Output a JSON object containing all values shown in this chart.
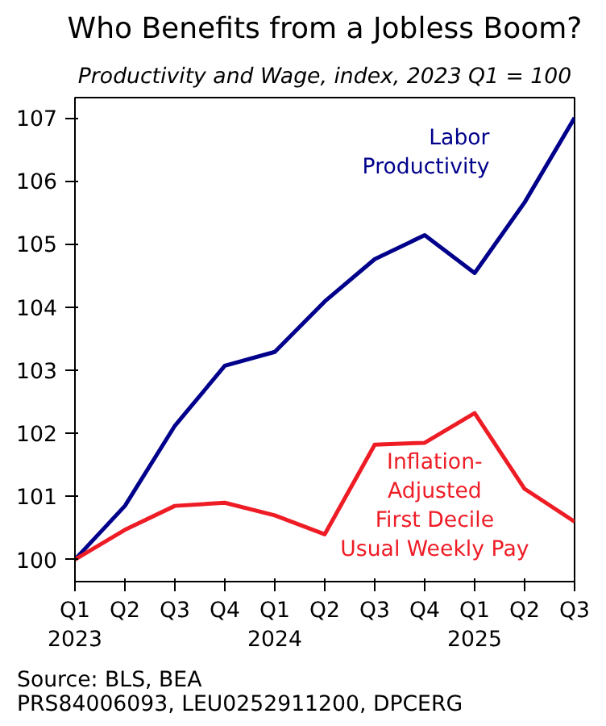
{
  "chart_data": {
    "type": "line",
    "title": "Who Benefits from a Jobless Boom?",
    "subtitle": "Productivity and Wage, index, 2023 Q1 = 100",
    "categories": [
      "Q1\n2023",
      "Q2",
      "Q3",
      "Q4",
      "Q1\n2024",
      "Q2",
      "Q3",
      "Q4",
      "Q1\n2025",
      "Q2",
      "Q3"
    ],
    "series": [
      {
        "name": "Labor\nProductivity",
        "color": "#00008b",
        "values": [
          100,
          100.85,
          102.12,
          103.07,
          103.29,
          104.09,
          104.76,
          105.14,
          104.54,
          105.66,
          107.0
        ]
      },
      {
        "name": "Inflation-\nAdjusted\nFirst Decile\nUsual Weekly Pay",
        "color": "#ee1c25",
        "values": [
          100,
          100.47,
          100.85,
          100.9,
          100.7,
          100.4,
          101.82,
          101.85,
          102.32,
          101.12,
          100.6
        ]
      }
    ],
    "ylim": [
      99.65,
      107.32
    ],
    "yticks": [
      100,
      101,
      102,
      103,
      104,
      105,
      106,
      107
    ],
    "annotations": [
      "Source: BLS, BEA\nPRS84006093, LEU0252911200, DPCERG"
    ],
    "grid": false
  }
}
